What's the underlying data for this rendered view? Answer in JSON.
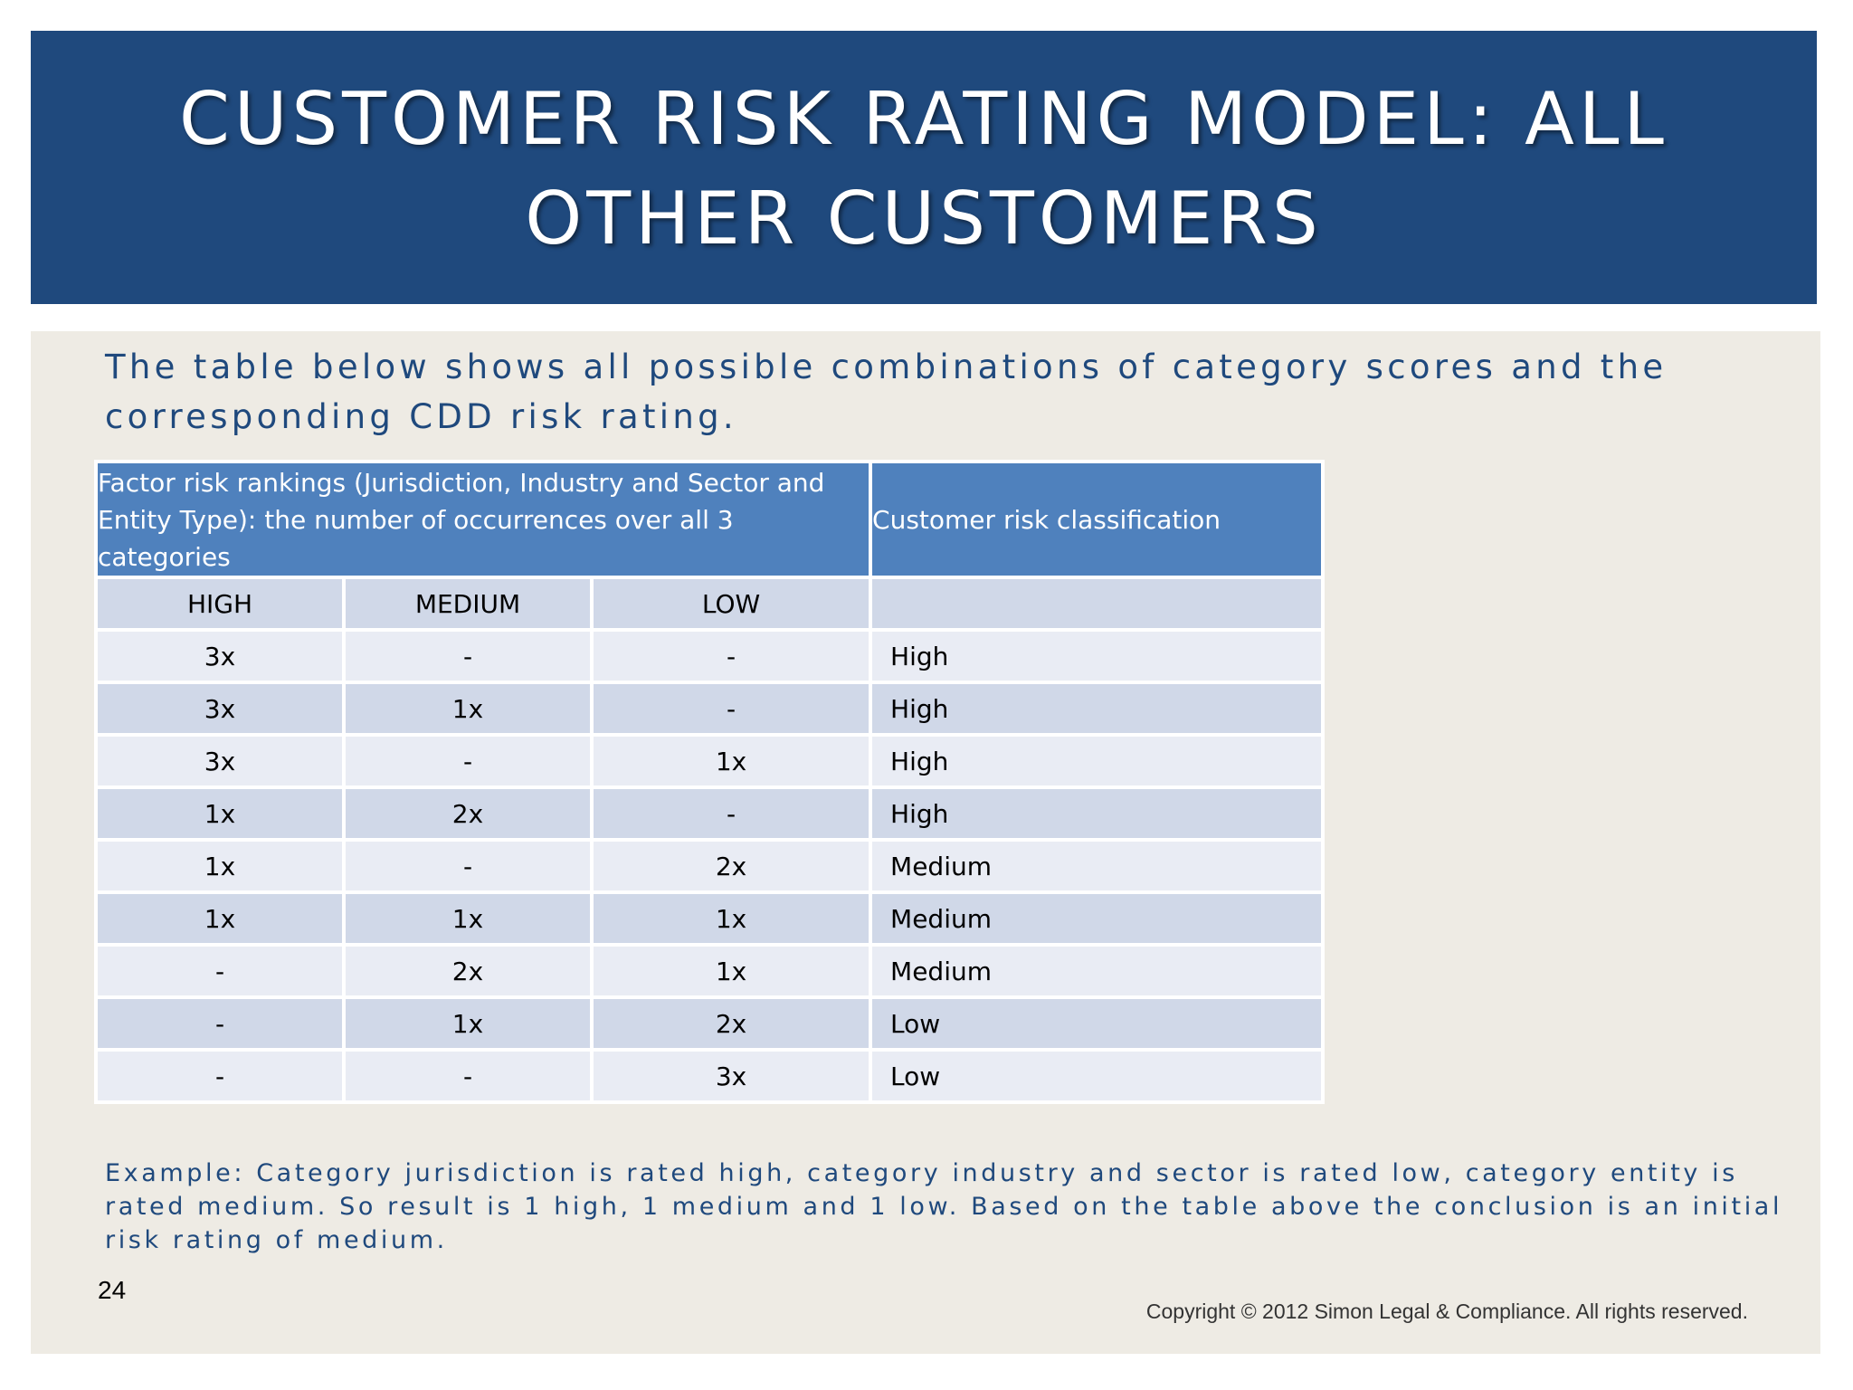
{
  "slide": {
    "title": "CUSTOMER RISK RATING MODEL: ALL OTHER CUSTOMERS",
    "intro": "The table below shows all possible combinations of category scores and the corresponding CDD risk rating.",
    "example": "Example: Category jurisdiction is rated high, category industry and sector is rated low, category entity is rated medium. So result is 1 high, 1 medium and 1 low. Based on the table above the conclusion is an initial risk rating of medium.",
    "page_number": "24",
    "copyright": "Copyright © 2012 Simon Legal & Compliance. All rights reserved."
  },
  "table": {
    "header_factor": "Factor risk rankings (Jurisdiction, Industry and Sector and Entity Type): the number of occurrences over all 3 categories",
    "header_classification": "Customer risk classification",
    "sub_headers": [
      "HIGH",
      "MEDIUM",
      "LOW",
      ""
    ],
    "rows": [
      [
        "3x",
        "-",
        "-",
        "High"
      ],
      [
        "3x",
        "1x",
        "-",
        "High"
      ],
      [
        "3x",
        "-",
        "1x",
        "High"
      ],
      [
        "1x",
        "2x",
        "-",
        "High"
      ],
      [
        "1x",
        "-",
        "2x",
        "Medium"
      ],
      [
        "1x",
        "1x",
        "1x",
        "Medium"
      ],
      [
        "-",
        "2x",
        "1x",
        "Medium"
      ],
      [
        "-",
        "1x",
        "2x",
        "Low"
      ],
      [
        "-",
        "-",
        "3x",
        "Low"
      ]
    ]
  },
  "colors": {
    "title_bar": "#1f497d",
    "content_bg": "#eeebe4",
    "table_header": "#4f81bd",
    "row_light": "#e9ecf4",
    "row_dark": "#d0d8e8",
    "accent_text": "#1f497d"
  }
}
